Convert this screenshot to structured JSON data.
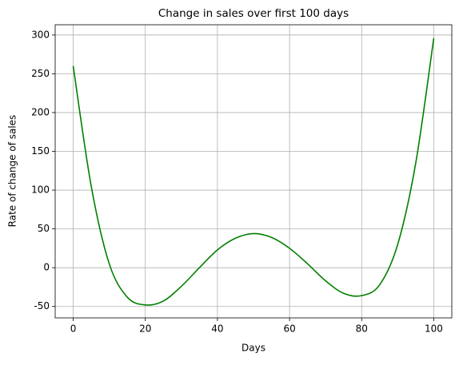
{
  "chart_data": {
    "type": "line",
    "title": "Change in sales over first 100 days",
    "x_label": "Days",
    "y_label": "Rate of change of sales",
    "x": [
      0,
      5,
      10,
      15,
      20,
      25,
      30,
      35,
      40,
      45,
      50,
      55,
      60,
      65,
      70,
      75,
      80,
      85,
      90,
      95,
      100
    ],
    "series": [
      {
        "name": "sales",
        "color": "#008000",
        "values": [
          260,
          105,
          5,
          -38,
          -48,
          -43,
          -24,
          0,
          23,
          38,
          44,
          39,
          25,
          5,
          -17,
          -33,
          -36,
          -22,
          30,
          135,
          296
        ]
      }
    ],
    "xlim": [
      -5,
      105
    ],
    "xticks": [
      0,
      20,
      40,
      60,
      80,
      100
    ],
    "ylim": [
      -64.7,
      313.2
    ],
    "yticks": [
      -50,
      0,
      50,
      100,
      150,
      200,
      250,
      300
    ],
    "grid": true
  }
}
